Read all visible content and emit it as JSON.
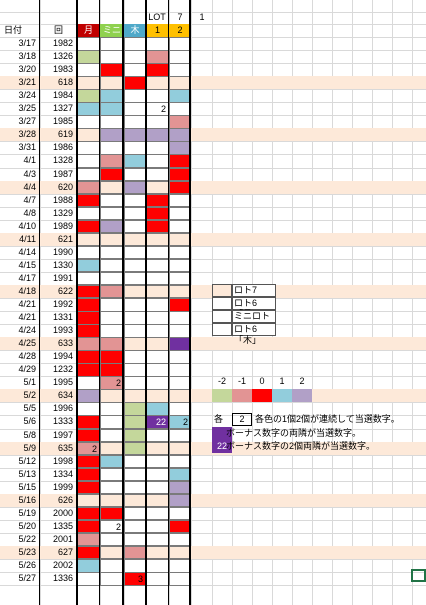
{
  "header": {
    "top_labels": [
      {
        "text": "LOT",
        "col": 5
      },
      {
        "text": "7",
        "col": 6
      },
      {
        "text": "1",
        "col": 7
      }
    ],
    "date_label": "日付",
    "kai_label": "回",
    "col_labels": [
      "月",
      "ミニ",
      "木",
      "1",
      "2"
    ],
    "col_colors": [
      "#c00000",
      "#8fd14f",
      "#4fa9c9",
      "#ffc000",
      "#ffc000"
    ]
  },
  "colors": {
    "r": "#ff0000",
    "p": "#e29494",
    "g": "#c4d79b",
    "b": "#92cddc",
    "v": "#b1a0c7",
    "w": "#ffffff",
    "k": "#fde9d9",
    "d": "#7030a0",
    "row_pink": "#fde9d9"
  },
  "rows": [
    {
      "date": "3/17",
      "kai": "1982",
      "cells": [
        "w",
        "w",
        "w",
        "w",
        "w"
      ],
      "pink": false
    },
    {
      "date": "3/18",
      "kai": "1326",
      "cells": [
        "g",
        "w",
        "w",
        "p",
        "w"
      ],
      "pink": false
    },
    {
      "date": "3/20",
      "kai": "1983",
      "cells": [
        "w",
        "r",
        "w",
        "r",
        "w"
      ],
      "pink": false
    },
    {
      "date": "3/21",
      "kai": "618",
      "cells": [
        "w",
        "w",
        "r",
        "w",
        "w"
      ],
      "pink": true
    },
    {
      "date": "3/24",
      "kai": "1984",
      "cells": [
        "g",
        "b",
        "w",
        "w",
        "b"
      ],
      "pink": false
    },
    {
      "date": "3/25",
      "kai": "1327",
      "cells": [
        "b",
        "b",
        "w",
        "w",
        "w"
      ],
      "pink": false,
      "labels": {
        "3": "2"
      }
    },
    {
      "date": "3/27",
      "kai": "1985",
      "cells": [
        "w",
        "w",
        "w",
        "w",
        "p"
      ],
      "pink": false
    },
    {
      "date": "3/28",
      "kai": "619",
      "cells": [
        "w",
        "v",
        "v",
        "v",
        "v"
      ],
      "pink": true
    },
    {
      "date": "3/31",
      "kai": "1986",
      "cells": [
        "w",
        "w",
        "w",
        "w",
        "v"
      ],
      "pink": false
    },
    {
      "date": "4/1",
      "kai": "1328",
      "cells": [
        "w",
        "p",
        "b",
        "w",
        "r"
      ],
      "pink": false
    },
    {
      "date": "4/3",
      "kai": "1987",
      "cells": [
        "w",
        "r",
        "w",
        "w",
        "r"
      ],
      "pink": false
    },
    {
      "date": "4/4",
      "kai": "620",
      "cells": [
        "p",
        "w",
        "v",
        "w",
        "r"
      ],
      "pink": true
    },
    {
      "date": "4/7",
      "kai": "1988",
      "cells": [
        "r",
        "w",
        "w",
        "r",
        "w"
      ],
      "pink": false
    },
    {
      "date": "4/8",
      "kai": "1329",
      "cells": [
        "w",
        "w",
        "w",
        "r",
        "w"
      ],
      "pink": false
    },
    {
      "date": "4/10",
      "kai": "1989",
      "cells": [
        "r",
        "v",
        "w",
        "r",
        "w"
      ],
      "pink": false
    },
    {
      "date": "4/11",
      "kai": "621",
      "cells": [
        "w",
        "w",
        "w",
        "w",
        "w"
      ],
      "pink": true
    },
    {
      "date": "4/14",
      "kai": "1990",
      "cells": [
        "w",
        "w",
        "w",
        "w",
        "w"
      ],
      "pink": false
    },
    {
      "date": "4/15",
      "kai": "1330",
      "cells": [
        "b",
        "w",
        "w",
        "w",
        "w"
      ],
      "pink": false
    },
    {
      "date": "4/17",
      "kai": "1991",
      "cells": [
        "w",
        "w",
        "w",
        "w",
        "w"
      ],
      "pink": false
    },
    {
      "date": "4/18",
      "kai": "622",
      "cells": [
        "r",
        "p",
        "w",
        "w",
        "w"
      ],
      "pink": true
    },
    {
      "date": "4/21",
      "kai": "1992",
      "cells": [
        "r",
        "w",
        "w",
        "w",
        "r"
      ],
      "pink": false
    },
    {
      "date": "4/21b",
      "kai": "1331",
      "cells": [
        "r",
        "w",
        "w",
        "w",
        "w"
      ],
      "pink": false
    },
    {
      "date": "4/24",
      "kai": "1993",
      "cells": [
        "r",
        "w",
        "w",
        "w",
        "w"
      ],
      "pink": false
    },
    {
      "date": "4/25",
      "kai": "633",
      "cells": [
        "p",
        "p",
        "w",
        "w",
        "d"
      ],
      "pink": true
    },
    {
      "date": "4/28",
      "kai": "1994",
      "cells": [
        "r",
        "r",
        "w",
        "w",
        "w"
      ],
      "pink": false
    },
    {
      "date": "4/29",
      "kai": "1232",
      "cells": [
        "r",
        "r",
        "w",
        "w",
        "w"
      ],
      "pink": false
    },
    {
      "date": "5/1",
      "kai": "1995",
      "cells": [
        "w",
        "p",
        "w",
        "w",
        "w"
      ],
      "pink": false,
      "labels": {
        "1": "2"
      }
    },
    {
      "date": "5/2",
      "kai": "634",
      "cells": [
        "v",
        "w",
        "w",
        "w",
        "w"
      ],
      "pink": true
    },
    {
      "date": "5/5",
      "kai": "1996",
      "cells": [
        "w",
        "w",
        "g",
        "b",
        "w"
      ],
      "pink": false
    },
    {
      "date": "5/6",
      "kai": "1333",
      "cells": [
        "r",
        "w",
        "g",
        "d",
        "b"
      ],
      "pink": false,
      "labels": {
        "3": "22",
        "4": "2"
      }
    },
    {
      "date": "5/8",
      "kai": "1997",
      "cells": [
        "r",
        "w",
        "g",
        "w",
        "w"
      ],
      "pink": false
    },
    {
      "date": "5/9",
      "kai": "635",
      "cells": [
        "p",
        "w",
        "g",
        "w",
        "w"
      ],
      "pink": true,
      "labels": {
        "0": "2"
      }
    },
    {
      "date": "5/12",
      "kai": "1998",
      "cells": [
        "r",
        "b",
        "w",
        "w",
        "w"
      ],
      "pink": false
    },
    {
      "date": "5/13",
      "kai": "1334",
      "cells": [
        "r",
        "w",
        "w",
        "w",
        "b"
      ],
      "pink": false
    },
    {
      "date": "5/15",
      "kai": "1999",
      "cells": [
        "r",
        "w",
        "w",
        "w",
        "v"
      ],
      "pink": false
    },
    {
      "date": "5/16",
      "kai": "626",
      "cells": [
        "w",
        "w",
        "w",
        "w",
        "v"
      ],
      "pink": true
    },
    {
      "date": "5/19",
      "kai": "2000",
      "cells": [
        "r",
        "r",
        "w",
        "w",
        "w"
      ],
      "pink": false
    },
    {
      "date": "5/20",
      "kai": "1335",
      "cells": [
        "r",
        "w",
        "w",
        "w",
        "r"
      ],
      "pink": false,
      "labels": {
        "1": "2"
      }
    },
    {
      "date": "5/22",
      "kai": "2001",
      "cells": [
        "p",
        "w",
        "w",
        "w",
        "w"
      ],
      "pink": false
    },
    {
      "date": "5/23",
      "kai": "627",
      "cells": [
        "r",
        "w",
        "p",
        "w",
        "w"
      ],
      "pink": true
    },
    {
      "date": "5/26",
      "kai": "2002",
      "cells": [
        "b",
        "w",
        "w",
        "w",
        "w"
      ],
      "pink": false
    },
    {
      "date": "5/27",
      "kai": "1336",
      "cells": [
        "w",
        "w",
        "r",
        "w",
        "w"
      ],
      "pink": false,
      "labels": {
        "2": "3"
      }
    }
  ],
  "date_display": [
    "3/17",
    "3/18",
    "3/20",
    "3/21",
    "3/24",
    "3/25",
    "3/27",
    "3/28",
    "3/31",
    "4/1",
    "4/3",
    "4/4",
    "4/7",
    "4/8",
    "4/10",
    "4/11",
    "4/14",
    "4/15",
    "4/17",
    "4/18",
    "4/21",
    "4/21",
    "4/24",
    "4/25",
    "4/28",
    "4/29",
    "5/1",
    "5/2",
    "5/5",
    "5/6",
    "5/8",
    "5/9",
    "5/12",
    "5/13",
    "5/15",
    "5/16",
    "5/19",
    "5/20",
    "5/22",
    "5/23",
    "5/26",
    "5/27"
  ],
  "legend_types": [
    {
      "text": "ロト7",
      "color": "#fde9d9"
    },
    {
      "text": "ロト6「月」",
      "color": "#ffffff"
    },
    {
      "text": "ミニロト",
      "color": "#ffffff"
    },
    {
      "text": "ロト6「木」",
      "color": "#ffffff"
    }
  ],
  "scale": {
    "labels": [
      "-2",
      "-1",
      "0",
      "1",
      "2"
    ],
    "colors": [
      "#c4d79b",
      "#e29494",
      "#ff0000",
      "#92cddc",
      "#b1a0c7"
    ]
  },
  "notes": {
    "each_label": "各",
    "each_value": "2",
    "line1": "各色の1個2個が連続して当選数字。",
    "line2": "ボーナス数字の両隣が当選数字。",
    "line3_value": "22",
    "line3": "ボーナス数字の2個両隣が当選数字。"
  }
}
